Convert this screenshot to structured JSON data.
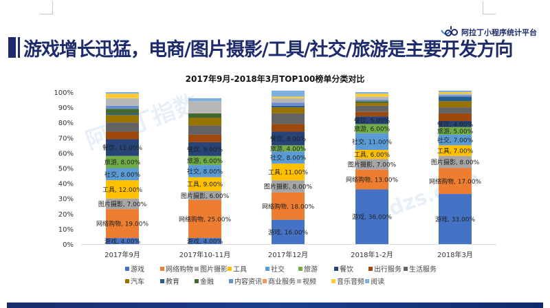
{
  "header": {
    "title": "游戏增长迅猛，电商/图片摄影/工具/社交/旅游是主要开发方向",
    "brand": "阿拉丁小程序统计平台"
  },
  "watermark": {
    "cn": "阿拉丁指数",
    "en": "Aldzs.com"
  },
  "chart_data": {
    "type": "bar",
    "stacked": true,
    "title": "2017年9月-2018年3月TOP100榜单分类对比",
    "xlabel": "",
    "ylabel": "",
    "ylim": [
      0,
      100
    ],
    "yticks": [
      "0%",
      "10%",
      "20%",
      "30%",
      "40%",
      "50%",
      "60%",
      "70%",
      "80%",
      "90%",
      "100%"
    ],
    "grid": false,
    "legend_position": "bottom",
    "categories": [
      "2017年9月",
      "2017年10-11月",
      "2017年12月",
      "2018年1-2月",
      "2018年3月"
    ],
    "series": [
      {
        "name": "游戏",
        "color": "#4472c4",
        "values": [
          4,
          4,
          16,
          36,
          33
        ],
        "labels": [
          "游戏, 4.00%",
          "游戏, 4.00%",
          "游戏, 16.00%",
          "游戏, 36.00%",
          "游戏, 33.00%"
        ]
      },
      {
        "name": "网络购物",
        "color": "#ed7d31",
        "values": [
          19,
          25,
          18,
          13,
          17
        ],
        "labels": [
          "网络购物, 19.00%",
          "网络购物, 25.00%",
          "网络购物, 18.00%",
          "网络购物, 13.00%",
          "网络购物, 17.00%"
        ]
      },
      {
        "name": "图片摄影",
        "color": "#a5a5a5",
        "values": [
          7,
          6,
          8,
          7,
          8
        ],
        "labels": [
          "图片摄影, 7.00%",
          "图片摄影, 6.00%",
          "图片摄影, 8.00%",
          "图片摄影, 7.00%",
          "图片摄影, 8.00%"
        ]
      },
      {
        "name": "工具",
        "color": "#ffc000",
        "values": [
          12,
          9,
          11,
          6,
          7
        ],
        "labels": [
          "工具, 12.00%",
          "工具, 9.00%",
          "工具, 11.00%",
          "工具, 6.00%",
          "工具, 7.00%"
        ]
      },
      {
        "name": "社交",
        "color": "#5b9bd5",
        "values": [
          8,
          8,
          8,
          11,
          7
        ],
        "labels": [
          "社交, 8.00%",
          "社交, 8.00%",
          "社交, 8.00%",
          "社交, 11.00%",
          "社交, 7.00%"
        ]
      },
      {
        "name": "旅游",
        "color": "#70ad47",
        "values": [
          8,
          6,
          4,
          6,
          5
        ],
        "labels": [
          "旅游, 8.00%",
          "旅游, 6.00%",
          "旅游, 4.00%",
          "旅游, 6.00%",
          "旅游, 5.00%"
        ]
      },
      {
        "name": "餐饮",
        "color": "#264478",
        "values": [
          11,
          9,
          9,
          5,
          4
        ],
        "labels": [
          "餐饮, 11.00%",
          "餐饮, 9.00%",
          "餐饮, 9.00%",
          "餐饮, 5.00%",
          "餐饮, 4.00%"
        ]
      },
      {
        "name": "出行服务",
        "color": "#9e480e",
        "values": [
          5,
          5,
          5,
          3,
          5
        ],
        "labels": null
      },
      {
        "name": "生活服务",
        "color": "#636363",
        "values": [
          6,
          6,
          7,
          4,
          4
        ],
        "labels": null
      },
      {
        "name": "汽车",
        "color": "#997300",
        "values": [
          5,
          5,
          4,
          2,
          4
        ],
        "labels": null
      },
      {
        "name": "教育",
        "color": "#255e91",
        "values": [
          1,
          0,
          1,
          0,
          3
        ],
        "labels": null
      },
      {
        "name": "金融",
        "color": "#43682b",
        "values": [
          3,
          3,
          0,
          1,
          0
        ],
        "labels": null
      },
      {
        "name": "内容资讯",
        "color": "#698ed0",
        "values": [
          2,
          0,
          2,
          1,
          1
        ],
        "labels": null
      },
      {
        "name": "商业服务",
        "color": "#f1975a",
        "values": [
          0,
          0,
          0,
          0,
          0
        ],
        "labels": null
      },
      {
        "name": "视频",
        "color": "#b7b7b7",
        "values": [
          5,
          8,
          3,
          2,
          1
        ],
        "labels": null
      },
      {
        "name": "音乐音频",
        "color": "#ffcd33",
        "values": [
          3,
          0,
          1,
          2,
          1
        ],
        "labels": null
      },
      {
        "name": "阅读",
        "color": "#7cafdd",
        "values": [
          1,
          2,
          4,
          1,
          1
        ],
        "labels": null
      }
    ]
  }
}
